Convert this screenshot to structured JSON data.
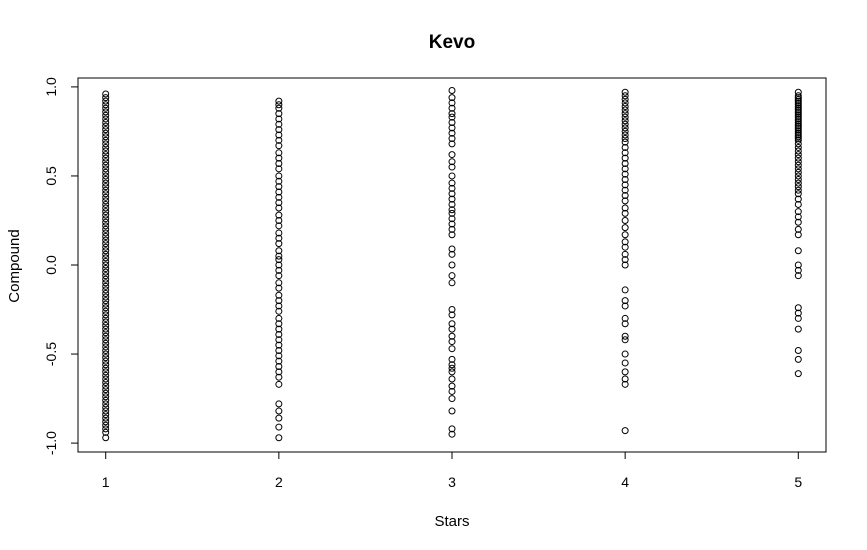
{
  "chart_data": {
    "type": "scatter",
    "title": "Kevo",
    "xlabel": "Stars",
    "ylabel": "Compound",
    "xlim": [
      0.84,
      5.16
    ],
    "ylim": [
      -1.05,
      1.05
    ],
    "x_ticks": [
      1,
      2,
      3,
      4,
      5
    ],
    "y_ticks": [
      -1.0,
      -0.5,
      0.0,
      0.5,
      1.0
    ],
    "x_tick_labels": [
      "1",
      "2",
      "3",
      "4",
      "5"
    ],
    "y_tick_labels": [
      "-1.0",
      "-0.5",
      "0.0",
      "0.5",
      "1.0"
    ],
    "grid": false,
    "legend": "none",
    "marker_color": "#000000",
    "groups": [
      {
        "x": 1,
        "y": [
          0.96,
          0.94,
          0.92,
          0.9,
          0.88,
          0.86,
          0.84,
          0.82,
          0.8,
          0.78,
          0.76,
          0.74,
          0.72,
          0.7,
          0.68,
          0.66,
          0.64,
          0.62,
          0.6,
          0.58,
          0.56,
          0.54,
          0.52,
          0.5,
          0.48,
          0.46,
          0.44,
          0.42,
          0.4,
          0.38,
          0.36,
          0.34,
          0.32,
          0.3,
          0.28,
          0.26,
          0.24,
          0.22,
          0.2,
          0.18,
          0.16,
          0.14,
          0.12,
          0.1,
          0.08,
          0.06,
          0.04,
          0.02,
          0.0,
          -0.02,
          -0.04,
          -0.06,
          -0.08,
          -0.1,
          -0.12,
          -0.14,
          -0.16,
          -0.18,
          -0.2,
          -0.22,
          -0.24,
          -0.26,
          -0.28,
          -0.3,
          -0.32,
          -0.34,
          -0.36,
          -0.38,
          -0.4,
          -0.42,
          -0.44,
          -0.46,
          -0.48,
          -0.5,
          -0.52,
          -0.54,
          -0.56,
          -0.58,
          -0.6,
          -0.62,
          -0.64,
          -0.66,
          -0.68,
          -0.7,
          -0.72,
          -0.74,
          -0.76,
          -0.78,
          -0.8,
          -0.82,
          -0.84,
          -0.86,
          -0.88,
          -0.9,
          -0.92,
          -0.94,
          -0.97
        ]
      },
      {
        "x": 2,
        "y": [
          0.92,
          0.9,
          0.88,
          0.85,
          0.82,
          0.79,
          0.76,
          0.73,
          0.7,
          0.67,
          0.63,
          0.6,
          0.57,
          0.54,
          0.5,
          0.47,
          0.44,
          0.41,
          0.38,
          0.35,
          0.32,
          0.28,
          0.25,
          0.22,
          0.18,
          0.15,
          0.12,
          0.08,
          0.05,
          0.03,
          0.0,
          -0.03,
          -0.06,
          -0.1,
          -0.13,
          -0.17,
          -0.2,
          -0.23,
          -0.26,
          -0.3,
          -0.33,
          -0.36,
          -0.39,
          -0.42,
          -0.45,
          -0.48,
          -0.51,
          -0.54,
          -0.57,
          -0.6,
          -0.63,
          -0.67,
          -0.78,
          -0.82,
          -0.86,
          -0.91,
          -0.97
        ]
      },
      {
        "x": 3,
        "y": [
          0.98,
          0.94,
          0.91,
          0.88,
          0.85,
          0.83,
          0.8,
          0.77,
          0.74,
          0.71,
          0.68,
          0.62,
          0.58,
          0.55,
          0.5,
          0.46,
          0.43,
          0.4,
          0.37,
          0.34,
          0.31,
          0.29,
          0.26,
          0.23,
          0.2,
          0.17,
          0.09,
          0.06,
          0.0,
          -0.06,
          -0.1,
          -0.25,
          -0.28,
          -0.33,
          -0.36,
          -0.4,
          -0.43,
          -0.47,
          -0.53,
          -0.56,
          -0.58,
          -0.6,
          -0.64,
          -0.68,
          -0.71,
          -0.75,
          -0.82,
          -0.92,
          -0.95
        ]
      },
      {
        "x": 4,
        "y": [
          0.97,
          0.95,
          0.93,
          0.91,
          0.89,
          0.87,
          0.85,
          0.83,
          0.81,
          0.79,
          0.77,
          0.75,
          0.73,
          0.71,
          0.69,
          0.66,
          0.63,
          0.6,
          0.57,
          0.54,
          0.51,
          0.48,
          0.45,
          0.42,
          0.39,
          0.36,
          0.32,
          0.29,
          0.25,
          0.21,
          0.17,
          0.13,
          0.1,
          0.06,
          0.03,
          0.0,
          -0.14,
          -0.2,
          -0.23,
          -0.3,
          -0.33,
          -0.4,
          -0.42,
          -0.5,
          -0.55,
          -0.6,
          -0.64,
          -0.67,
          -0.93
        ]
      },
      {
        "x": 5,
        "y": [
          0.97,
          0.95,
          0.94,
          0.93,
          0.92,
          0.91,
          0.9,
          0.89,
          0.88,
          0.87,
          0.86,
          0.85,
          0.84,
          0.83,
          0.82,
          0.81,
          0.8,
          0.79,
          0.78,
          0.77,
          0.76,
          0.75,
          0.74,
          0.73,
          0.72,
          0.71,
          0.7,
          0.68,
          0.66,
          0.64,
          0.62,
          0.6,
          0.58,
          0.56,
          0.54,
          0.52,
          0.5,
          0.48,
          0.46,
          0.44,
          0.42,
          0.4,
          0.37,
          0.34,
          0.3,
          0.27,
          0.24,
          0.2,
          0.17,
          0.08,
          0.0,
          -0.03,
          -0.06,
          -0.24,
          -0.27,
          -0.3,
          -0.36,
          -0.48,
          -0.53,
          -0.61
        ]
      }
    ]
  }
}
